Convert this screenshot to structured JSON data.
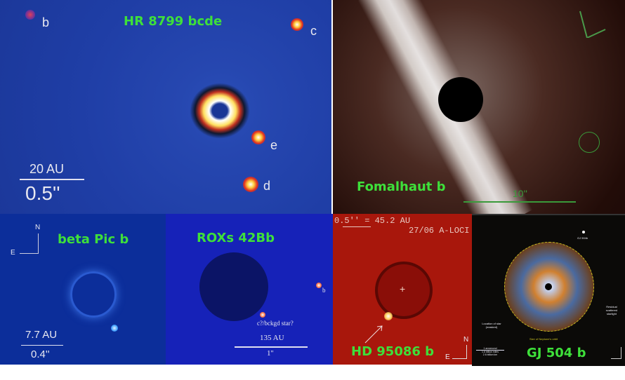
{
  "panels": {
    "hr8799": {
      "title": "HR 8799 bcde",
      "planets": [
        "b",
        "c",
        "e",
        "d"
      ],
      "scale_au": "20 AU",
      "scale_arcsec": "0.5''"
    },
    "fomalhaut": {
      "title": "Fomalhaut b",
      "scale_arcsec": "10''"
    },
    "beta_pic": {
      "title": "beta Pic b",
      "compass_n": "N",
      "compass_e": "E",
      "scale_au": "7.7 AU",
      "scale_arcsec": "0.4''"
    },
    "roxs": {
      "title": "ROXs 42Bb",
      "planet_label": "b",
      "candidate_label": "c?/bckgd star?",
      "scale_au": "135 AU",
      "scale_arcsec": "1''"
    },
    "hd95086": {
      "title": "HD 95086 b",
      "scale_text": "0.5'' = 45.2 AU",
      "date_text": "27/06 A-LOCI",
      "compass_n": "N",
      "compass_e": "E"
    },
    "gj504": {
      "title": "GJ 504 b",
      "planet_label": "GJ 504b",
      "residual_label": "Residual scattered starlight",
      "star_label": "Location of star (masked)",
      "orbit_label": "Size of Neptune's orbit",
      "scale_lines": [
        "1 arcsecond",
        "1.6 billion miles",
        "2.6 billion km"
      ]
    }
  },
  "colors": {
    "label_green": "#3ee03a"
  }
}
